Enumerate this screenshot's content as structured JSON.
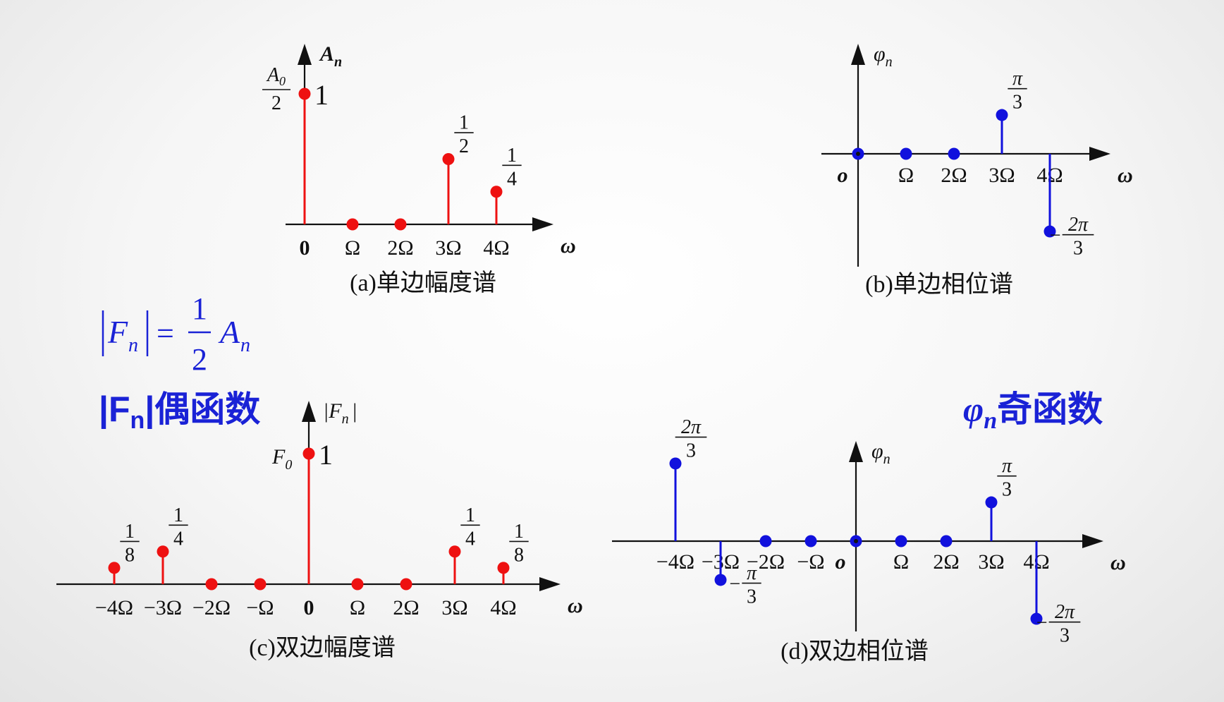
{
  "colors": {
    "amplitude": "#ee1111",
    "phase": "#1111dd",
    "accent_text": "#1a22d6",
    "axis": "#111111"
  },
  "formula": {
    "lhs": "F",
    "lhs_sub": "n",
    "numerator": "1",
    "denominator": "2",
    "rhs": "A",
    "rhs_sub": "n"
  },
  "notes": {
    "even": {
      "main": "|F",
      "sub": "n",
      "rest": "|偶函数"
    },
    "odd": {
      "main": "φ",
      "sub": "n",
      "rest": "奇函数"
    }
  },
  "chart_data": [
    {
      "id": "a",
      "type": "stem",
      "title": "(a)单边幅度谱",
      "xlabel": "ω",
      "ylabel": "A",
      "ylabel_sub": "n",
      "tick_labels": [
        "0",
        "Ω",
        "2Ω",
        "3Ω",
        "4Ω"
      ],
      "x": [
        0,
        1,
        2,
        3,
        4
      ],
      "values": [
        1,
        0,
        0,
        0.5,
        0.25
      ],
      "value_labels": [
        {
          "type": "text",
          "text": "1"
        },
        null,
        null,
        {
          "type": "frac",
          "num": "1",
          "den": "2"
        },
        {
          "type": "frac",
          "num": "1",
          "den": "4"
        }
      ],
      "side_label": {
        "num": "A",
        "num_sub": "0",
        "den": "2"
      },
      "ylim": [
        0,
        1
      ]
    },
    {
      "id": "b",
      "type": "stem",
      "title": "(b)单边相位谱",
      "xlabel": "ω",
      "ylabel": "φ",
      "ylabel_sub": "n",
      "tick_labels": [
        "o",
        "Ω",
        "2Ω",
        "3Ω",
        "4Ω"
      ],
      "x": [
        0,
        1,
        2,
        3,
        4
      ],
      "values": [
        0,
        0,
        0,
        0.333,
        -0.667
      ],
      "value_labels": [
        null,
        null,
        null,
        {
          "type": "frac",
          "num": "π",
          "den": "3"
        },
        {
          "type": "frac",
          "num": "2π",
          "den": "3",
          "sign": "−"
        }
      ],
      "ylim": [
        -0.667,
        0.333
      ]
    },
    {
      "id": "c",
      "type": "stem",
      "title": "(c)双边幅度谱",
      "xlabel": "ω",
      "ylabel": "|F",
      "ylabel_sub": "n",
      "ylabel_post": "|",
      "tick_labels": [
        "−4Ω",
        "−3Ω",
        "−2Ω",
        "−Ω",
        "0",
        "Ω",
        "2Ω",
        "3Ω",
        "4Ω"
      ],
      "x": [
        -4,
        -3,
        -2,
        -1,
        0,
        1,
        2,
        3,
        4
      ],
      "values": [
        0.125,
        0.25,
        0,
        0,
        1,
        0,
        0,
        0.25,
        0.125
      ],
      "value_labels": [
        {
          "type": "frac",
          "num": "1",
          "den": "8"
        },
        {
          "type": "frac",
          "num": "1",
          "den": "4"
        },
        null,
        null,
        {
          "type": "text",
          "text": "1"
        },
        null,
        null,
        {
          "type": "frac",
          "num": "1",
          "den": "4"
        },
        {
          "type": "frac",
          "num": "1",
          "den": "8"
        }
      ],
      "side_label": {
        "text": "F",
        "text_sub": "0"
      },
      "ylim": [
        0,
        1
      ]
    },
    {
      "id": "d",
      "type": "stem",
      "title": "(d)双边相位谱",
      "xlabel": "ω",
      "ylabel": "φ",
      "ylabel_sub": "n",
      "tick_labels": [
        "−4Ω",
        "−3Ω",
        "−2Ω",
        "−Ω",
        "o",
        "Ω",
        "2Ω",
        "3Ω",
        "4Ω"
      ],
      "x": [
        -4,
        -3,
        -2,
        -1,
        0,
        1,
        2,
        3,
        4
      ],
      "values": [
        0.667,
        -0.333,
        0,
        0,
        0,
        0,
        0,
        0.333,
        -0.667
      ],
      "value_labels": [
        {
          "type": "frac",
          "num": "2π",
          "den": "3"
        },
        {
          "type": "frac",
          "num": "π",
          "den": "3",
          "sign": "−"
        },
        null,
        null,
        null,
        null,
        null,
        {
          "type": "frac",
          "num": "π",
          "den": "3"
        },
        {
          "type": "frac",
          "num": "2π",
          "den": "3",
          "sign": "−"
        }
      ],
      "ylim": [
        -0.667,
        0.667
      ]
    }
  ]
}
